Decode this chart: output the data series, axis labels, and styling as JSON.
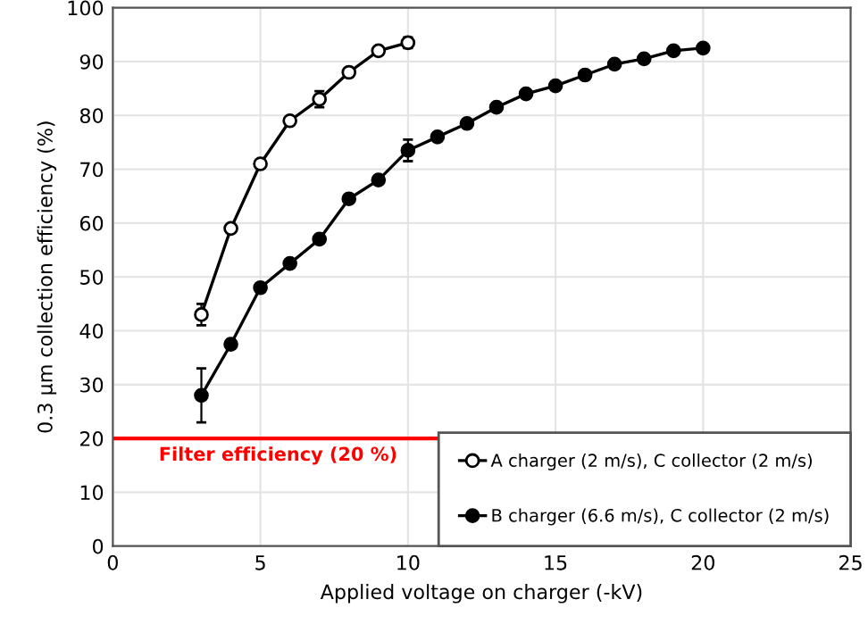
{
  "chart_data": {
    "type": "line",
    "xlabel": "Applied voltage on charger (-kV)",
    "ylabel": "0.3 μm collection efficiency (%)",
    "xlim": [
      0,
      25
    ],
    "xticks": [
      0,
      5,
      10,
      15,
      20,
      25
    ],
    "ylim": [
      0,
      100
    ],
    "yticks": [
      0,
      10,
      20,
      30,
      40,
      50,
      60,
      70,
      80,
      90,
      100
    ],
    "grid": true,
    "legend": "bottom right",
    "line_style": "solid",
    "series": [
      {
        "name": "A charger (2 m/s), C collector (2 m/s)",
        "color": "#000000",
        "marker": "circle",
        "x": [
          3,
          4,
          5,
          6,
          7,
          8,
          9,
          10
        ],
        "values": [
          43,
          59,
          71,
          79,
          83,
          88,
          92,
          93.5
        ],
        "errors": [
          2,
          null,
          null,
          null,
          1.5,
          null,
          null,
          1
        ]
      },
      {
        "name": "B charger (6.6 m/s), C collector (2 m/s)",
        "color": "#000000",
        "marker": "circle",
        "x": [
          3,
          4,
          5,
          6,
          7,
          8,
          9,
          10,
          11,
          12,
          13,
          14,
          15,
          16,
          17,
          18,
          19,
          20
        ],
        "values": [
          28,
          37.5,
          48,
          52.5,
          57,
          64.5,
          68,
          73.5,
          76,
          78.5,
          81.5,
          84,
          85.5,
          87.5,
          89.5,
          90.5,
          92,
          92.5
        ],
        "errors": [
          5,
          null,
          null,
          null,
          null,
          null,
          null,
          2,
          null,
          null,
          null,
          null,
          null,
          null,
          null,
          null,
          null,
          null
        ]
      }
    ],
    "ref_lines": [
      {
        "axis": "y",
        "value": 20,
        "label": "Filter efficiency (20 %)",
        "color": "#ff0000",
        "line_style": "solid"
      }
    ]
  }
}
